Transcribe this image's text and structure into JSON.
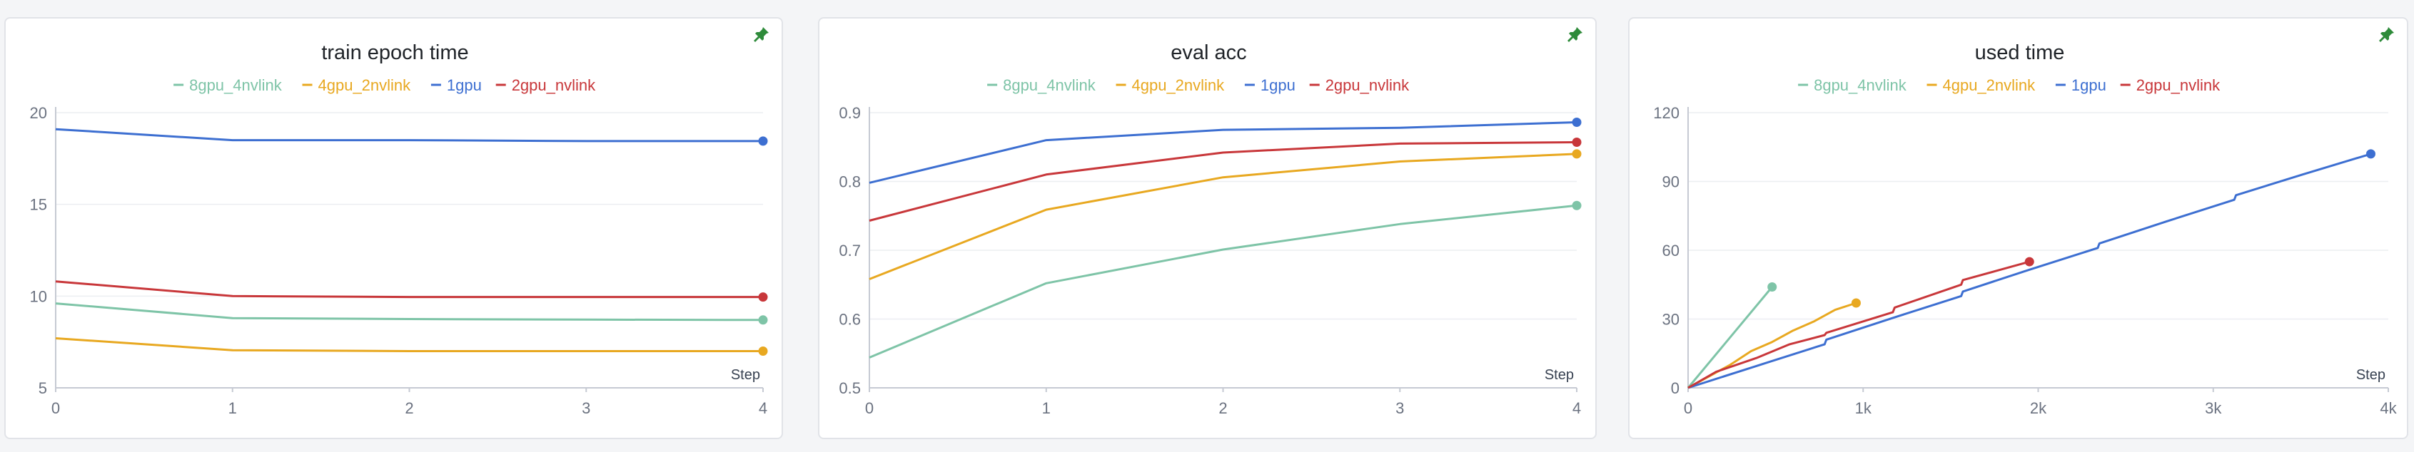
{
  "chart_data": [
    {
      "type": "line",
      "title": "train epoch time",
      "xlabel": "Step",
      "ylabel": "",
      "xlim": [
        0,
        4
      ],
      "ylim": [
        5,
        20
      ],
      "xticks": [
        0,
        1,
        2,
        3,
        4
      ],
      "xtick_labels": [
        "0",
        "1",
        "2",
        "3",
        "4"
      ],
      "yticks": [
        5,
        10,
        15,
        20
      ],
      "ytick_labels": [
        "5",
        "10",
        "15",
        "20"
      ],
      "grid": true,
      "legend_position": "top-center",
      "series": [
        {
          "name": "8gpu_4nvlink",
          "color": "#7ec4a7",
          "x": [
            0,
            1,
            2,
            3,
            4
          ],
          "y": [
            9.6,
            8.8,
            8.75,
            8.72,
            8.7
          ]
        },
        {
          "name": "4gpu_2nvlink",
          "color": "#e8a820",
          "x": [
            0,
            1,
            2,
            3,
            4
          ],
          "y": [
            7.7,
            7.05,
            7.0,
            7.0,
            7.0
          ]
        },
        {
          "name": "1gpu",
          "color": "#3d6fd1",
          "x": [
            0,
            1,
            2,
            3,
            4
          ],
          "y": [
            19.1,
            18.5,
            18.5,
            18.45,
            18.45
          ]
        },
        {
          "name": "2gpu_nvlink",
          "color": "#c8373a",
          "x": [
            0,
            1,
            2,
            3,
            4
          ],
          "y": [
            10.8,
            10.0,
            9.95,
            9.95,
            9.95
          ]
        }
      ]
    },
    {
      "type": "line",
      "title": "eval acc",
      "xlabel": "Step",
      "ylabel": "",
      "xlim": [
        0,
        4
      ],
      "ylim": [
        0.5,
        0.9
      ],
      "xticks": [
        0,
        1,
        2,
        3,
        4
      ],
      "xtick_labels": [
        "0",
        "1",
        "2",
        "3",
        "4"
      ],
      "yticks": [
        0.5,
        0.6,
        0.7,
        0.8,
        0.9
      ],
      "ytick_labels": [
        "0.5",
        "0.6",
        "0.7",
        "0.8",
        "0.9"
      ],
      "grid": true,
      "legend_position": "top-center",
      "series": [
        {
          "name": "8gpu_4nvlink",
          "color": "#7ec4a7",
          "x": [
            0,
            1,
            2,
            3,
            4
          ],
          "y": [
            0.544,
            0.652,
            0.701,
            0.738,
            0.765
          ]
        },
        {
          "name": "4gpu_2nvlink",
          "color": "#e8a820",
          "x": [
            0,
            1,
            2,
            3,
            4
          ],
          "y": [
            0.658,
            0.759,
            0.806,
            0.829,
            0.84
          ]
        },
        {
          "name": "1gpu",
          "color": "#3d6fd1",
          "x": [
            0,
            1,
            2,
            3,
            4
          ],
          "y": [
            0.798,
            0.86,
            0.875,
            0.878,
            0.886
          ]
        },
        {
          "name": "2gpu_nvlink",
          "color": "#c8373a",
          "x": [
            0,
            1,
            2,
            3,
            4
          ],
          "y": [
            0.743,
            0.81,
            0.842,
            0.855,
            0.857
          ]
        }
      ]
    },
    {
      "type": "line",
      "title": "used time",
      "xlabel": "Step",
      "ylabel": "",
      "xlim": [
        0,
        4000
      ],
      "ylim": [
        0,
        120
      ],
      "xticks": [
        0,
        1000,
        2000,
        3000,
        4000
      ],
      "xtick_labels": [
        "0",
        "1k",
        "2k",
        "3k",
        "4k"
      ],
      "yticks": [
        0,
        30,
        60,
        90,
        120
      ],
      "ytick_labels": [
        "0",
        "30",
        "60",
        "90",
        "120"
      ],
      "grid": true,
      "legend_position": "top-center",
      "series": [
        {
          "name": "8gpu_4nvlink",
          "color": "#7ec4a7",
          "x": [
            0,
            240,
            480
          ],
          "y": [
            0,
            22,
            44
          ]
        },
        {
          "name": "4gpu_2nvlink",
          "color": "#e8a820",
          "x": [
            0,
            120,
            240,
            360,
            480,
            600,
            720,
            840,
            960
          ],
          "y": [
            0,
            5,
            10,
            16,
            20,
            25,
            29,
            34,
            37
          ]
        },
        {
          "name": "1gpu",
          "color": "#3d6fd1",
          "x": [
            0,
            390,
            780,
            790,
            1170,
            1560,
            1570,
            1950,
            2340,
            2350,
            2730,
            3120,
            3130,
            3510,
            3900
          ],
          "y": [
            0,
            9.5,
            19,
            21,
            30.5,
            40,
            42,
            51.5,
            61,
            63,
            72.5,
            82,
            84,
            93,
            102
          ]
        },
        {
          "name": "2gpu_nvlink",
          "color": "#c8373a",
          "x": [
            0,
            160,
            390,
            580,
            780,
            790,
            1170,
            1180,
            1560,
            1570,
            1950
          ],
          "y": [
            0,
            7,
            13,
            19,
            23,
            24,
            33,
            35,
            45,
            47,
            55
          ]
        }
      ]
    }
  ]
}
